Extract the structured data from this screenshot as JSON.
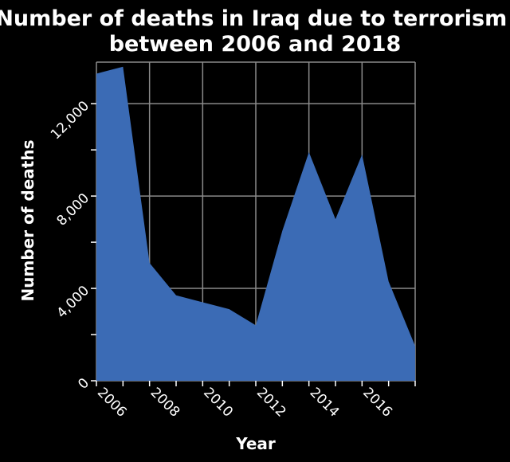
{
  "chart_data": {
    "type": "area",
    "title": "Number of deaths in Iraq due to terrorism between 2006 and 2018",
    "title_lines": [
      "Number of deaths in Iraq due to terrorism",
      "between 2006 and 2018"
    ],
    "xlabel": "Year",
    "ylabel": "Number of deaths",
    "x": [
      2006,
      2007,
      2008,
      2009,
      2010,
      2011,
      2012,
      2013,
      2014,
      2015,
      2016,
      2017,
      2018
    ],
    "values": [
      13300,
      13600,
      5100,
      3700,
      3400,
      3100,
      2400,
      6500,
      9900,
      7000,
      9800,
      4300,
      1500
    ],
    "xlim": [
      2006,
      2018
    ],
    "ylim": [
      0,
      13800
    ],
    "x_ticks": [
      2006,
      2008,
      2010,
      2012,
      2014,
      2016
    ],
    "x_tick_labels": [
      "2006",
      "2008",
      "2010",
      "2012",
      "2014",
      "2016"
    ],
    "y_ticks": [
      0,
      4000,
      8000,
      12000
    ],
    "y_tick_labels": [
      "0",
      "4,000",
      "8,000",
      "12,000"
    ],
    "y_minor_ticks": [
      2000,
      6000,
      10000
    ],
    "grid": true,
    "legend": "none",
    "colors": {
      "background": "#000000",
      "area_fill": "#3b6bb5",
      "grid": "#8a8a8a",
      "text": "#ffffff"
    }
  }
}
